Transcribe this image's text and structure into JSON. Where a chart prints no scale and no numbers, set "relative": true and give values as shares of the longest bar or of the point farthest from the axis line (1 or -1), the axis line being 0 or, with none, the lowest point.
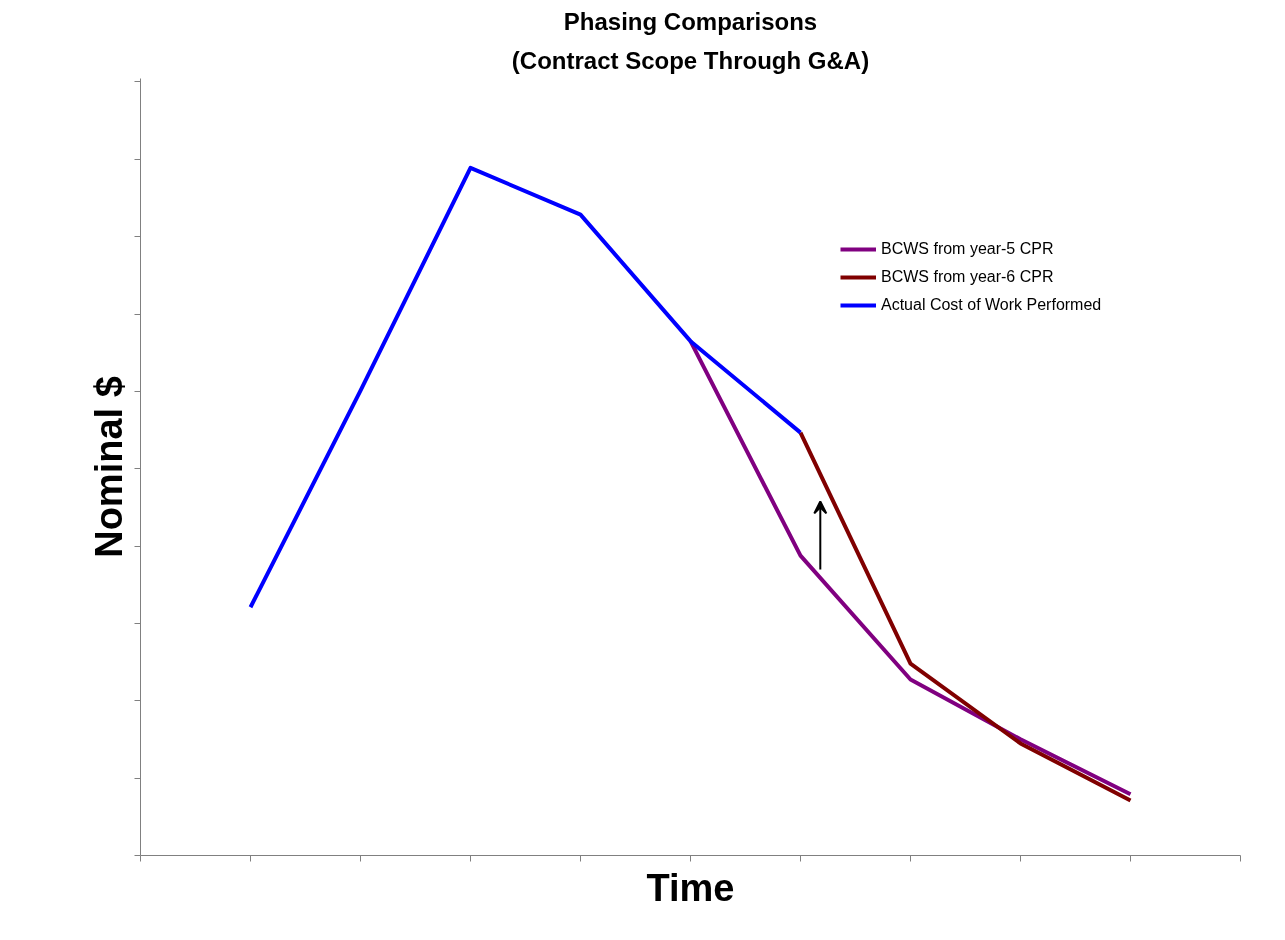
{
  "chart_data": {
    "type": "line",
    "title": "Phasing Comparisons",
    "subtitle": "(Contract Scope Through G&A)",
    "xlabel": "Time",
    "ylabel": "Nominal $",
    "relative": true,
    "categories": [
      null,
      null,
      null,
      null,
      null,
      null,
      null,
      null,
      null
    ],
    "series": [
      {
        "name": "BCWS from year-5 CPR",
        "color": "#800080",
        "values": [
          null,
          null,
          null,
          null,
          0.748,
          0.436,
          0.256,
          0.169,
          0.089
        ]
      },
      {
        "name": "BCWS from year-6 CPR",
        "color": "#800000",
        "values": [
          null,
          null,
          null,
          null,
          null,
          0.615,
          0.279,
          0.163,
          0.08
        ]
      },
      {
        "name": "Actual Cost of Work Performed",
        "color": "#0000ff",
        "values": [
          0.361,
          0.676,
          1,
          0.932,
          0.748,
          0.615,
          null,
          null,
          null
        ]
      }
    ],
    "legend": "right",
    "grid": false,
    "tick_labels": false,
    "marker": "none",
    "line_style": "solid"
  }
}
